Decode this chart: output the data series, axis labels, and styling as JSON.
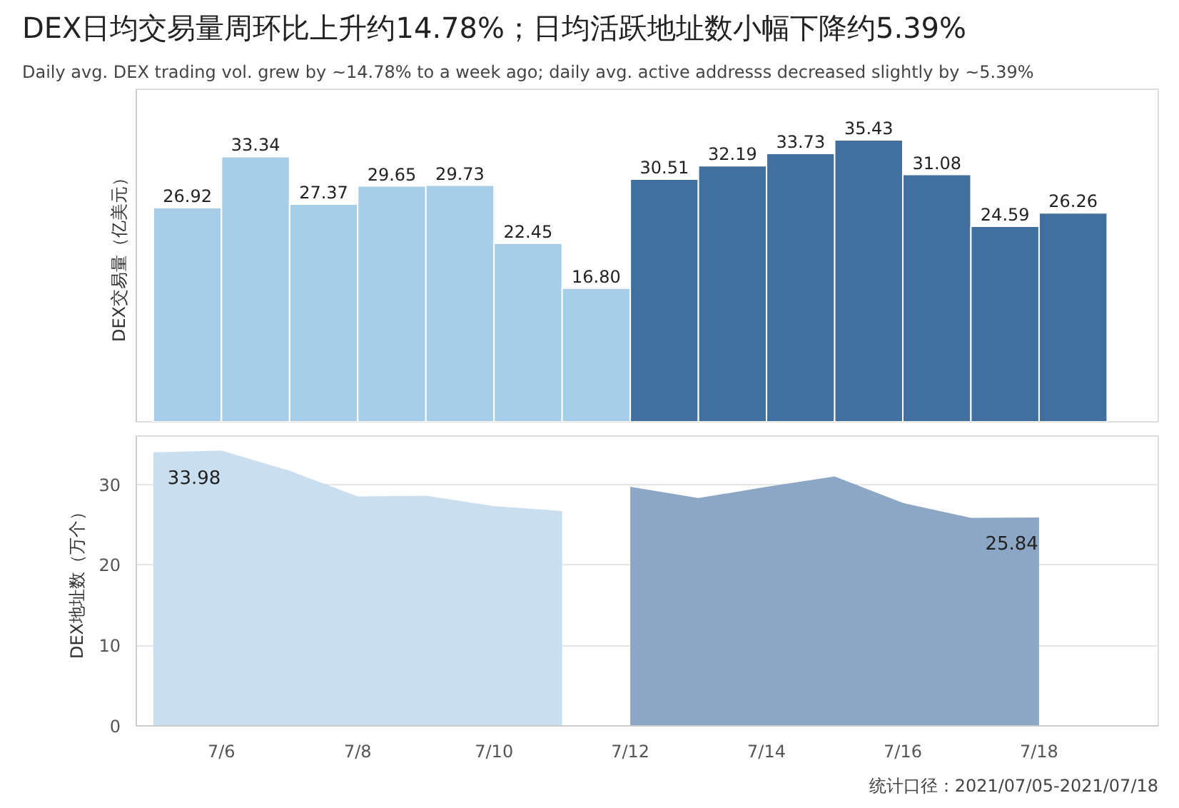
{
  "chart_data": [
    {
      "type": "bar",
      "title": "DEX日均交易量周环比上升约14.78%；日均活跃地址数小幅下降约5.39%",
      "subtitle": "Daily avg. DEX trading vol. grew by ~14.78% to a week ago; daily avg. active addresss decreased slightly by ~5.39%",
      "ylabel": "DEX交易量（亿美元）",
      "x": [
        "2021-07-05T12:00",
        "2021-07-06T12:00",
        "2021-07-07T12:00",
        "2021-07-08T12:00",
        "2021-07-09T12:00",
        "2021-07-10T12:00",
        "2021-07-11T12:00",
        "2021-07-12T12:00",
        "2021-07-13T12:00",
        "2021-07-14T12:00",
        "2021-07-15T12:00",
        "2021-07-16T12:00",
        "2021-07-17T12:00",
        "2021-07-18T12:00"
      ],
      "values": [
        26.92,
        33.34,
        27.37,
        29.65,
        29.73,
        22.45,
        16.8,
        30.51,
        32.19,
        33.73,
        35.43,
        31.08,
        24.59,
        26.26
      ],
      "value_labels": [
        "26.92",
        "33.34",
        "27.37",
        "29.65",
        "29.73",
        "22.45",
        "16.80",
        "30.51",
        "32.19",
        "33.73",
        "35.43",
        "31.08",
        "24.59",
        "26.26"
      ],
      "colors": [
        "#a8cde8",
        "#a8cde8",
        "#a8cde8",
        "#a8cde8",
        "#a8cde8",
        "#a8cde8",
        "#a8cde8",
        "#41709f",
        "#41709f",
        "#41709f",
        "#41709f",
        "#41709f",
        "#41709f",
        "#41709f"
      ],
      "xlim": [
        "2021-07-04T18:00",
        "2021-07-19T18:00"
      ],
      "tick_labels": false,
      "grid": false
    },
    {
      "type": "area",
      "ylabel": "DEX地址数（万个）",
      "series": [
        {
          "color": "#c9dff0",
          "x": [
            "2021-07-05",
            "2021-07-06",
            "2021-07-07",
            "2021-07-08",
            "2021-07-09",
            "2021-07-10",
            "2021-07-11"
          ],
          "values": [
            33.98,
            34.2,
            31.7,
            28.5,
            28.6,
            27.3,
            26.7
          ]
        },
        {
          "color": "#8ca7c6",
          "x": [
            "2021-07-12",
            "2021-07-13",
            "2021-07-14",
            "2021-07-15",
            "2021-07-16",
            "2021-07-17",
            "2021-07-18"
          ],
          "values": [
            29.7,
            28.3,
            29.7,
            31.0,
            27.7,
            25.84,
            25.9
          ]
        }
      ],
      "annotations": [
        {
          "text": "33.98",
          "x": "2021-07-05",
          "y": 33.98
        },
        {
          "text": "25.84",
          "x": "2021-07-17",
          "y": 25.84
        },
        "统计口径：2021/07/05-2021/07/18"
      ],
      "xlim": [
        "2021-07-04T18:00",
        "2021-07-19T18:00"
      ],
      "ylim": [
        0,
        36
      ],
      "yticks": [
        0,
        10,
        20,
        30
      ],
      "xticks": [
        {
          "value": "2021-07-06",
          "label": "7/6"
        },
        {
          "value": "2021-07-08",
          "label": "7/8"
        },
        {
          "value": "2021-07-10",
          "label": "7/10"
        },
        {
          "value": "2021-07-12",
          "label": "7/12"
        },
        {
          "value": "2021-07-14",
          "label": "7/14"
        },
        {
          "value": "2021-07-16",
          "label": "7/16"
        },
        {
          "value": "2021-07-18",
          "label": "7/18"
        }
      ],
      "grid": "y"
    }
  ]
}
